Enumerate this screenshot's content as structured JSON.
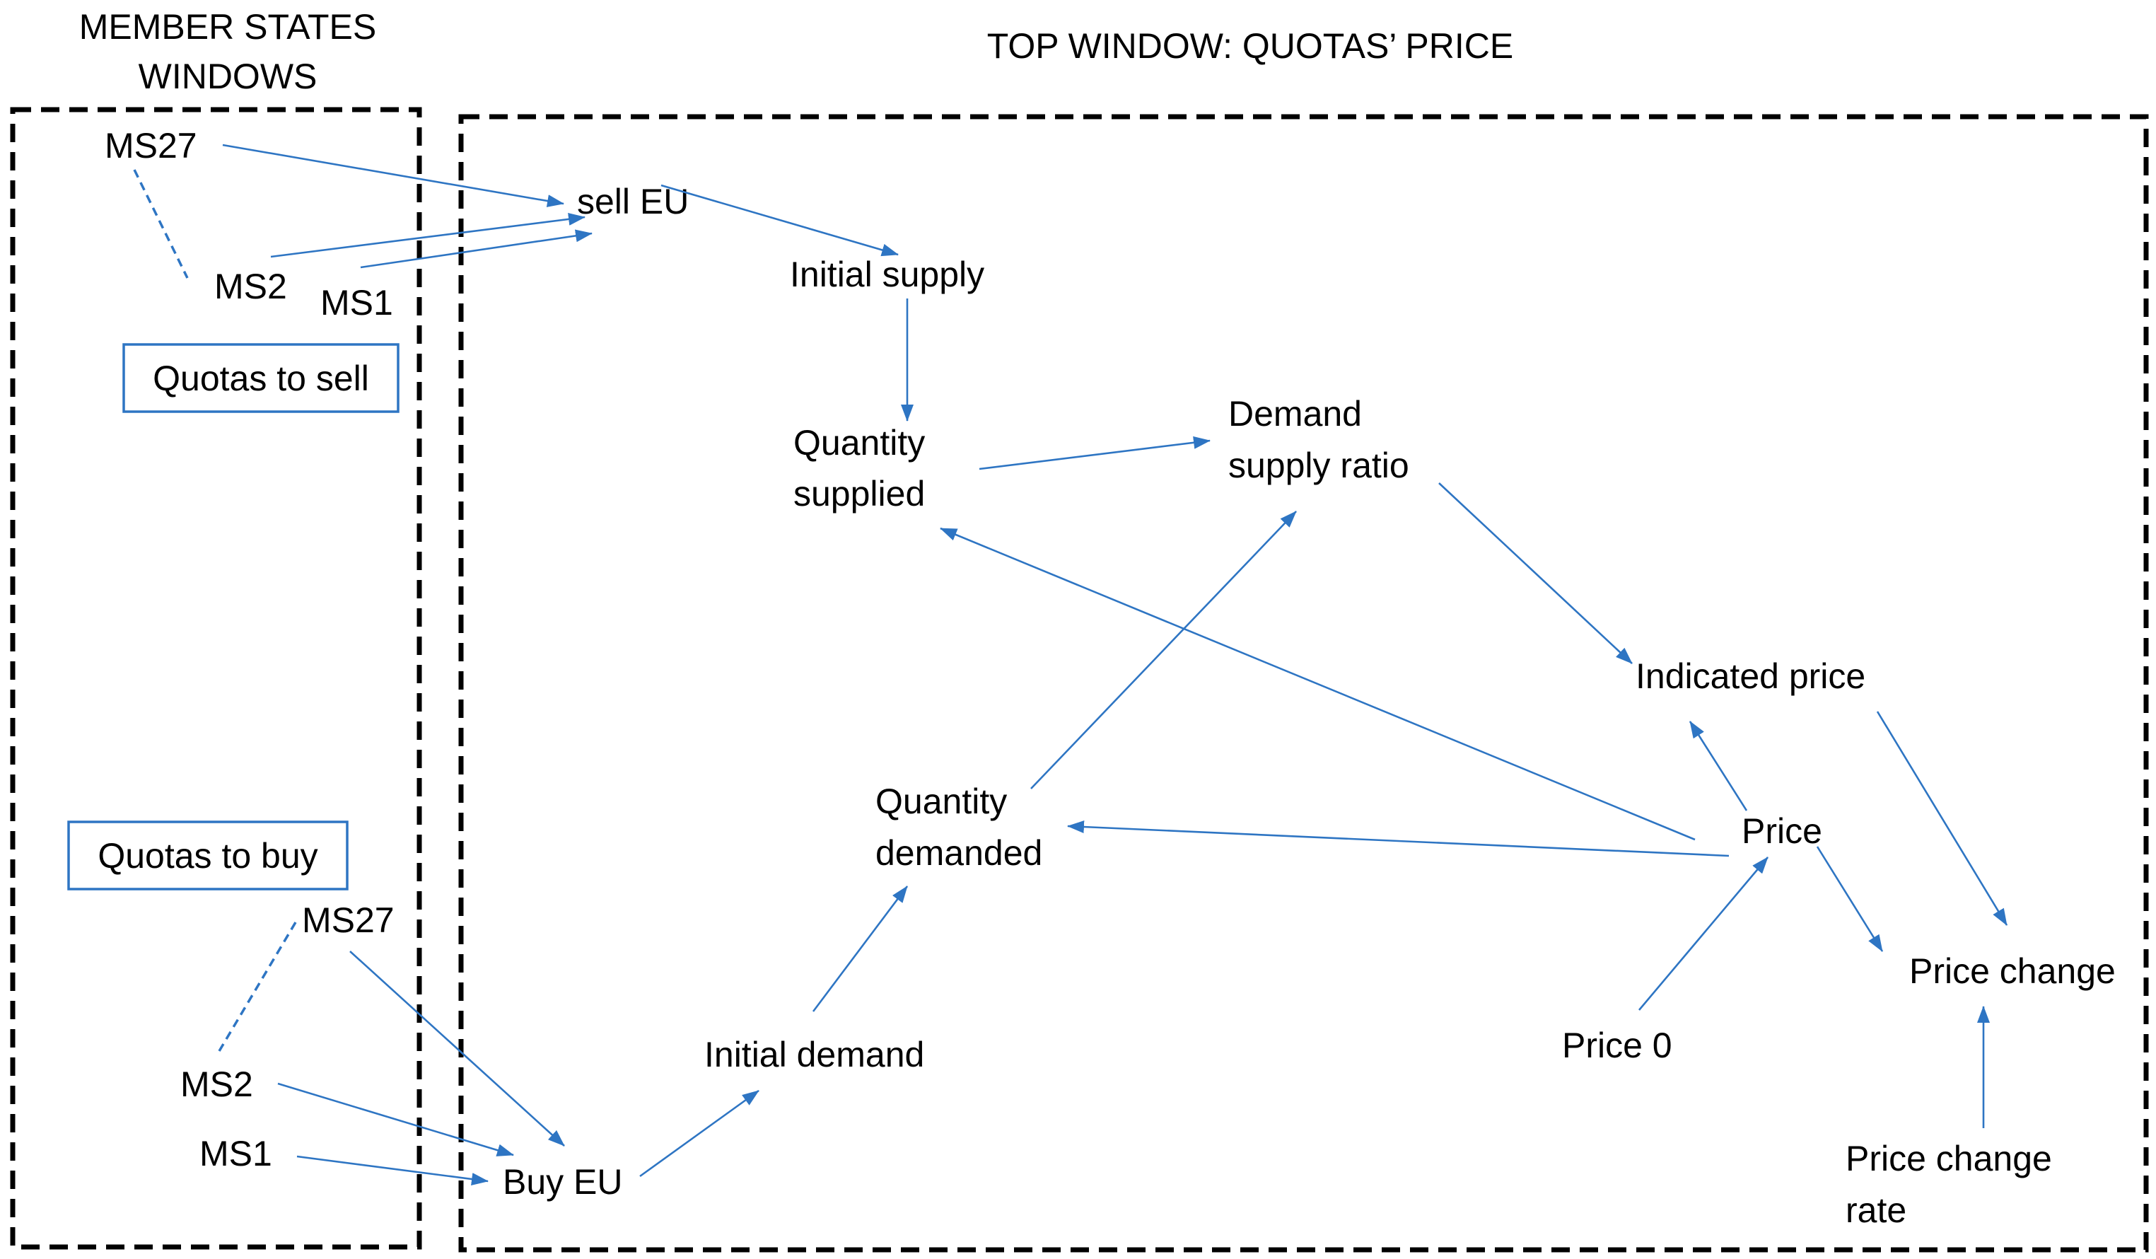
{
  "windows": {
    "member_states_title_line1": "MEMBER STATES",
    "member_states_title_line2": "WINDOWS",
    "top_window_title": "TOP WINDOW: QUOTAS’ PRICE"
  },
  "member_states": {
    "sell": {
      "box": "Quotas to sell",
      "ms27": "MS27",
      "ms2": "MS2",
      "ms1": "MS1"
    },
    "buy": {
      "box": "Quotas to buy",
      "ms27": "MS27",
      "ms2": "MS2",
      "ms1": "MS1"
    }
  },
  "nodes": {
    "sell_eu": "sell EU",
    "initial_supply": "Initial supply",
    "quantity_supplied_line1": "Quantity",
    "quantity_supplied_line2": "supplied",
    "demand_supply_ratio_line1": "Demand",
    "demand_supply_ratio_line2": "supply ratio",
    "indicated_price": "Indicated price",
    "quantity_demanded_line1": "Quantity",
    "quantity_demanded_line2": "demanded",
    "price": "Price",
    "price_change": "Price change",
    "initial_demand": "Initial demand",
    "price_0": "Price 0",
    "buy_eu": "Buy EU",
    "price_change_rate_line1": "Price change",
    "price_change_rate_line2": "rate"
  },
  "colors": {
    "arrow": "#2E75C3",
    "frame": "#000000",
    "text": "#000000"
  }
}
